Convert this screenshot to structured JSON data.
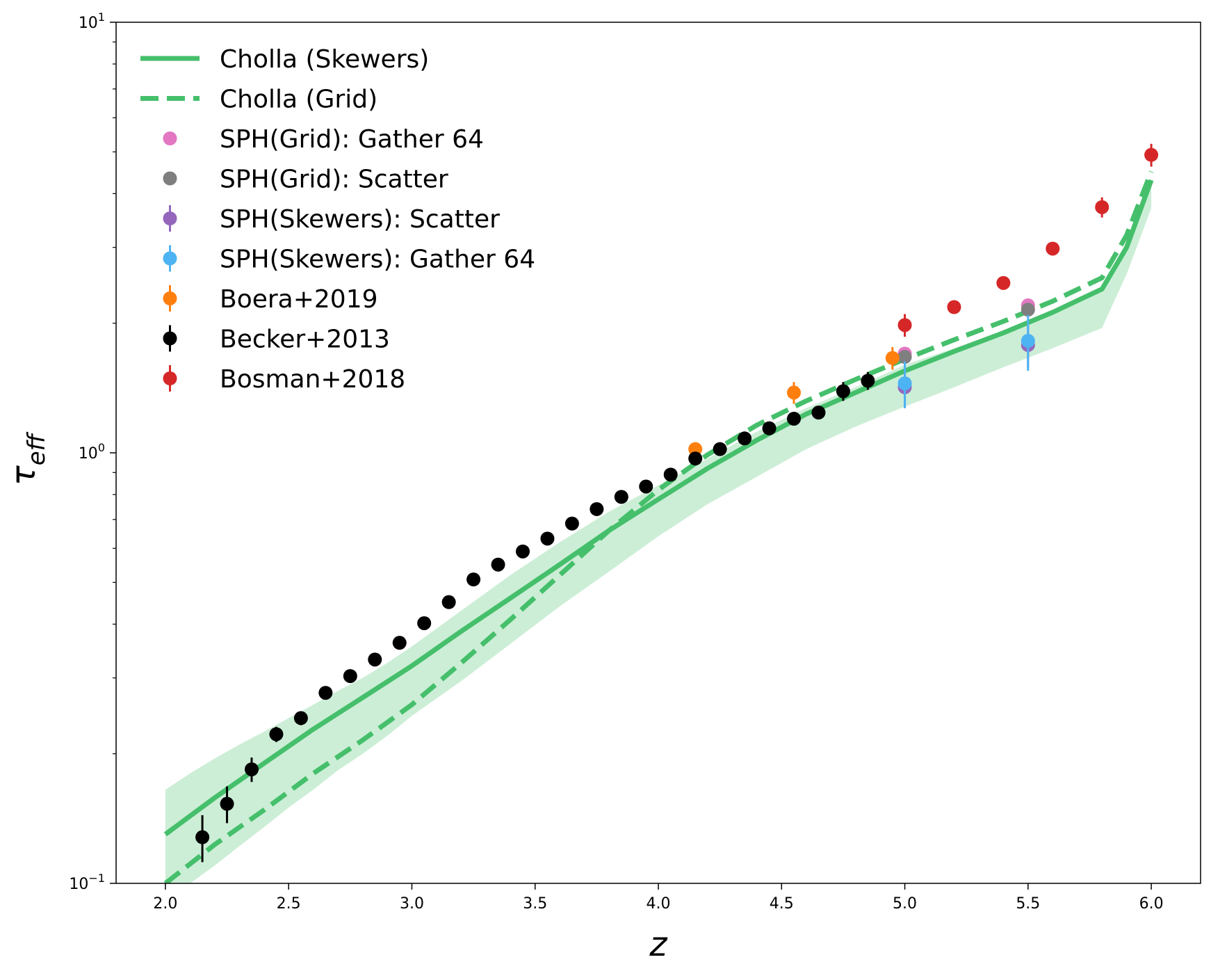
{
  "chart_data": {
    "type": "line",
    "title": "",
    "xlabel": "z",
    "ylabel": "τ_eff",
    "ylabel_main": "τ",
    "ylabel_sub": "eff",
    "xscale": "linear",
    "yscale": "log",
    "xlim": [
      1.8,
      6.2
    ],
    "ylim": [
      0.1,
      10
    ],
    "x_ticks": [
      2.0,
      2.5,
      3.0,
      3.5,
      4.0,
      4.5,
      5.0,
      5.5,
      6.0
    ],
    "x_tick_labels": [
      "2.0",
      "2.5",
      "3.0",
      "3.5",
      "4.0",
      "4.5",
      "5.0",
      "5.5",
      "6.0"
    ],
    "y_ticks": [
      {
        "value": 0.1,
        "base": "10",
        "exp": "−1"
      },
      {
        "value": 1,
        "base": "10",
        "exp": "0"
      },
      {
        "value": 10,
        "base": "10",
        "exp": "1"
      }
    ],
    "grid": false,
    "legend_position": "top-left",
    "colors": {
      "cholla": "#45bf6b",
      "band": "#c6ecd1",
      "sph_grid_gather": "#e377c2",
      "sph_grid_scatter": "#7f7f7f",
      "sph_skewers_scatter": "#9467bd",
      "sph_skewers_gather": "#4db3f2",
      "boera": "#ff7f0e",
      "becker": "#000000",
      "bosman": "#d62728"
    },
    "band": {
      "x": [
        2.0,
        2.1,
        2.2,
        2.3,
        2.4,
        2.5,
        2.6,
        2.7,
        2.8,
        2.9,
        3.0,
        3.2,
        3.4,
        3.6,
        3.8,
        4.0,
        4.2,
        4.4,
        4.6,
        4.8,
        5.0,
        5.2,
        5.4,
        5.6,
        5.8,
        5.9,
        6.0
      ],
      "upper": [
        0.165,
        0.18,
        0.195,
        0.21,
        0.225,
        0.242,
        0.26,
        0.28,
        0.3,
        0.325,
        0.355,
        0.43,
        0.52,
        0.62,
        0.73,
        0.84,
        0.97,
        1.12,
        1.27,
        1.42,
        1.6,
        1.75,
        1.92,
        2.1,
        2.4,
        3.0,
        4.3
      ],
      "lower": [
        0.1,
        0.1,
        0.11,
        0.122,
        0.135,
        0.15,
        0.165,
        0.183,
        0.2,
        0.22,
        0.245,
        0.295,
        0.36,
        0.44,
        0.53,
        0.64,
        0.76,
        0.88,
        1.02,
        1.15,
        1.28,
        1.42,
        1.58,
        1.75,
        1.95,
        2.6,
        3.7
      ]
    },
    "series": [
      {
        "name": "Cholla (Skewers)",
        "kind": "line",
        "style": "solid",
        "x": [
          2.0,
          2.2,
          2.4,
          2.6,
          2.8,
          3.0,
          3.2,
          3.4,
          3.6,
          3.8,
          4.0,
          4.2,
          4.4,
          4.6,
          4.8,
          5.0,
          5.2,
          5.4,
          5.6,
          5.8,
          5.9,
          6.0
        ],
        "y": [
          0.13,
          0.158,
          0.19,
          0.228,
          0.27,
          0.32,
          0.385,
          0.46,
          0.55,
          0.66,
          0.78,
          0.92,
          1.07,
          1.23,
          1.38,
          1.55,
          1.72,
          1.9,
          2.12,
          2.4,
          3.0,
          4.3
        ]
      },
      {
        "name": "Cholla (Grid)",
        "kind": "line",
        "style": "dashed",
        "x": [
          2.0,
          2.2,
          2.4,
          2.6,
          2.8,
          3.0,
          3.2,
          3.4,
          3.6,
          3.8,
          4.0,
          4.2,
          4.4,
          4.6,
          4.8,
          5.0,
          5.2,
          5.4,
          5.6,
          5.8,
          5.9,
          6.0
        ],
        "y": [
          0.1,
          0.123,
          0.148,
          0.18,
          0.215,
          0.26,
          0.325,
          0.41,
          0.52,
          0.66,
          0.82,
          0.99,
          1.16,
          1.32,
          1.48,
          1.65,
          1.83,
          2.02,
          2.25,
          2.55,
          3.2,
          4.5
        ]
      },
      {
        "name": "SPH(Grid): Gather 64",
        "kind": "points",
        "x": [
          5.0,
          5.5
        ],
        "y": [
          1.7,
          2.2
        ],
        "err": [
          0,
          0
        ]
      },
      {
        "name": "SPH(Grid): Scatter",
        "kind": "points",
        "x": [
          5.0,
          5.5
        ],
        "y": [
          1.67,
          2.15
        ],
        "err": [
          0,
          0
        ]
      },
      {
        "name": "SPH(Skewers): Scatter",
        "kind": "points",
        "x": [
          5.0,
          5.5
        ],
        "y": [
          1.42,
          1.78
        ],
        "err": [
          0.15,
          0.2
        ]
      },
      {
        "name": "SPH(Skewers): Gather 64",
        "kind": "points",
        "x": [
          5.0,
          5.5
        ],
        "y": [
          1.45,
          1.82
        ],
        "err": [
          0.18,
          0.27
        ]
      },
      {
        "name": "Boera+2019",
        "kind": "points",
        "x": [
          4.15,
          4.55,
          4.95
        ],
        "y": [
          1.02,
          1.38,
          1.66
        ],
        "err": [
          0.03,
          0.08,
          0.1
        ]
      },
      {
        "name": "Becker+2013",
        "kind": "points",
        "x": [
          2.15,
          2.25,
          2.35,
          2.45,
          2.55,
          2.65,
          2.75,
          2.85,
          2.95,
          3.05,
          3.15,
          3.25,
          3.35,
          3.45,
          3.55,
          3.65,
          3.75,
          3.85,
          3.95,
          4.05,
          4.15,
          4.25,
          4.35,
          4.45,
          4.55,
          4.65,
          4.75,
          4.85
        ],
        "y": [
          0.128,
          0.153,
          0.184,
          0.222,
          0.242,
          0.277,
          0.303,
          0.331,
          0.362,
          0.402,
          0.45,
          0.508,
          0.55,
          0.59,
          0.632,
          0.685,
          0.74,
          0.79,
          0.835,
          0.89,
          0.97,
          1.02,
          1.08,
          1.14,
          1.2,
          1.24,
          1.39,
          1.47
        ],
        "err": [
          0.016,
          0.015,
          0.012,
          0.009,
          0.009,
          0.009,
          0.009,
          0.009,
          0.008,
          0.008,
          0.008,
          0.008,
          0.008,
          0.009,
          0.01,
          0.01,
          0.012,
          0.012,
          0.013,
          0.014,
          0.018,
          0.02,
          0.022,
          0.024,
          0.026,
          0.03,
          0.07,
          0.07
        ]
      },
      {
        "name": "Bosman+2018",
        "kind": "points",
        "x": [
          5.0,
          5.2,
          5.4,
          5.6,
          5.8,
          6.0
        ],
        "y": [
          1.98,
          2.18,
          2.48,
          2.98,
          3.72,
          4.92
        ],
        "err": [
          0.12,
          0.05,
          0.06,
          0.07,
          0.2,
          0.3
        ]
      }
    ],
    "legend": [
      {
        "label": "Cholla (Skewers)",
        "marker": "solid-line",
        "color": "#45bf6b"
      },
      {
        "label": "Cholla (Grid)",
        "marker": "dashed-line",
        "color": "#45bf6b"
      },
      {
        "label": "SPH(Grid): Gather 64",
        "marker": "dot",
        "color": "#e377c2"
      },
      {
        "label": "SPH(Grid): Scatter",
        "marker": "dot",
        "color": "#7f7f7f"
      },
      {
        "label": "SPH(Skewers): Scatter",
        "marker": "dot-errorbar",
        "color": "#9467bd"
      },
      {
        "label": "SPH(Skewers): Gather 64",
        "marker": "dot-errorbar",
        "color": "#4db3f2"
      },
      {
        "label": "Boera+2019",
        "marker": "dot-errorbar",
        "color": "#ff7f0e"
      },
      {
        "label": "Becker+2013",
        "marker": "dot-errorbar",
        "color": "#000000"
      },
      {
        "label": "Bosman+2018",
        "marker": "dot-errorbar",
        "color": "#d62728"
      }
    ]
  }
}
